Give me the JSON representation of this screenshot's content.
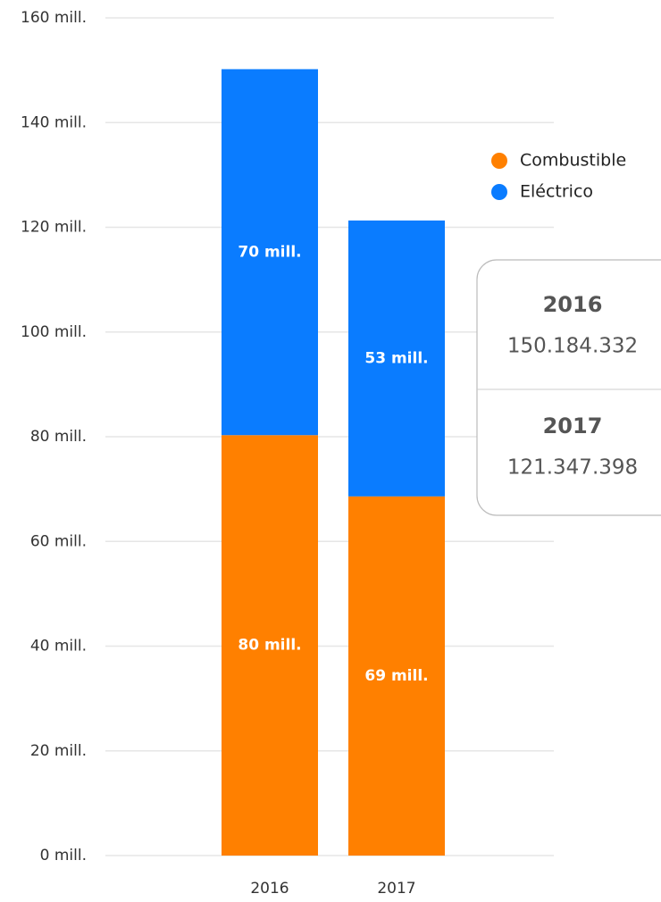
{
  "chart_data": {
    "type": "stacked_bar",
    "categories": [
      "2016",
      "2017"
    ],
    "series": [
      {
        "name": "Combustible",
        "color": "#ff8000",
        "values": [
          80.3,
          68.6
        ],
        "value_labels": [
          "80 mill.",
          "69 mill."
        ]
      },
      {
        "name": "Eléctrico",
        "color": "#0a7cff",
        "values": [
          69.9,
          52.7
        ],
        "value_labels": [
          "70 mill.",
          "53 mill."
        ]
      }
    ],
    "ylim": [
      0,
      160
    ],
    "yticks": [
      {
        "value": 0,
        "label": "0 mill."
      },
      {
        "value": 20,
        "label": "20 mill."
      },
      {
        "value": 40,
        "label": "40 mill."
      },
      {
        "value": 60,
        "label": "60 mill."
      },
      {
        "value": 80,
        "label": "80 mill."
      },
      {
        "value": 100,
        "label": "100 mill."
      },
      {
        "value": 120,
        "label": "120 mill."
      },
      {
        "value": 140,
        "label": "140 mill."
      },
      {
        "value": 160,
        "label": "160 mill."
      }
    ],
    "grid": true,
    "legend": "right",
    "tooltip": [
      {
        "title": "2016",
        "text": "150.184.332"
      },
      {
        "title": "2017",
        "text": "121.347.398"
      }
    ]
  }
}
